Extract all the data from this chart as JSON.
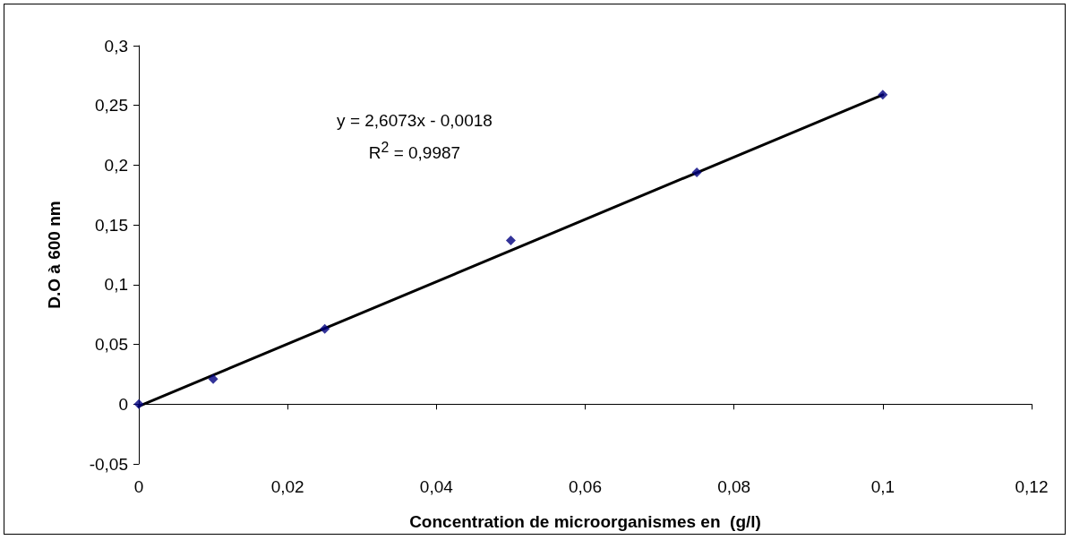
{
  "chart_data": {
    "type": "scatter",
    "xlabel": "Concentration de microorganismes en  (g/l)",
    "ylabel": "D.O à 600 nm",
    "series": [
      {
        "color": "#000080",
        "x": [
          0,
          0.01,
          0.025,
          0.05,
          0.075,
          0.1
        ],
        "values": [
          0,
          0.021,
          0.063,
          0.137,
          0.194,
          0.259
        ]
      },
      {
        "type": "line",
        "color": "#000000",
        "marker": "none",
        "line_style": "solid",
        "x": [
          0,
          0.1
        ],
        "values": [
          -0.0018,
          0.2589
        ]
      }
    ],
    "annotations": [
      "y = 2,6073x - 0,0018",
      "R$^{2}$ = 0,9987"
    ],
    "xlim": [
      0,
      0.12
    ],
    "xticks": [
      0,
      {
        "value": 0.02,
        "label": "0,02"
      },
      {
        "value": 0.04,
        "label": "0,04"
      },
      {
        "value": 0.06,
        "label": "0,06"
      },
      {
        "value": 0.08,
        "label": "0,08"
      },
      {
        "value": 0.1,
        "label": "0,1"
      },
      {
        "value": 0.12,
        "label": "0,12"
      }
    ],
    "ylim": [
      -0.05,
      0.3
    ],
    "yticks": [
      {
        "value": -0.05,
        "label": "-0,05"
      },
      0,
      {
        "value": 0.05,
        "label": "0,05"
      },
      {
        "value": 0.1,
        "label": "0,1"
      },
      {
        "value": 0.15,
        "label": "0,15"
      },
      {
        "value": 0.2,
        "label": "0,2"
      },
      {
        "value": 0.25,
        "label": "0,25"
      },
      {
        "value": 0.3,
        "label": "0,3"
      }
    ],
    "marker": "diamond"
  }
}
